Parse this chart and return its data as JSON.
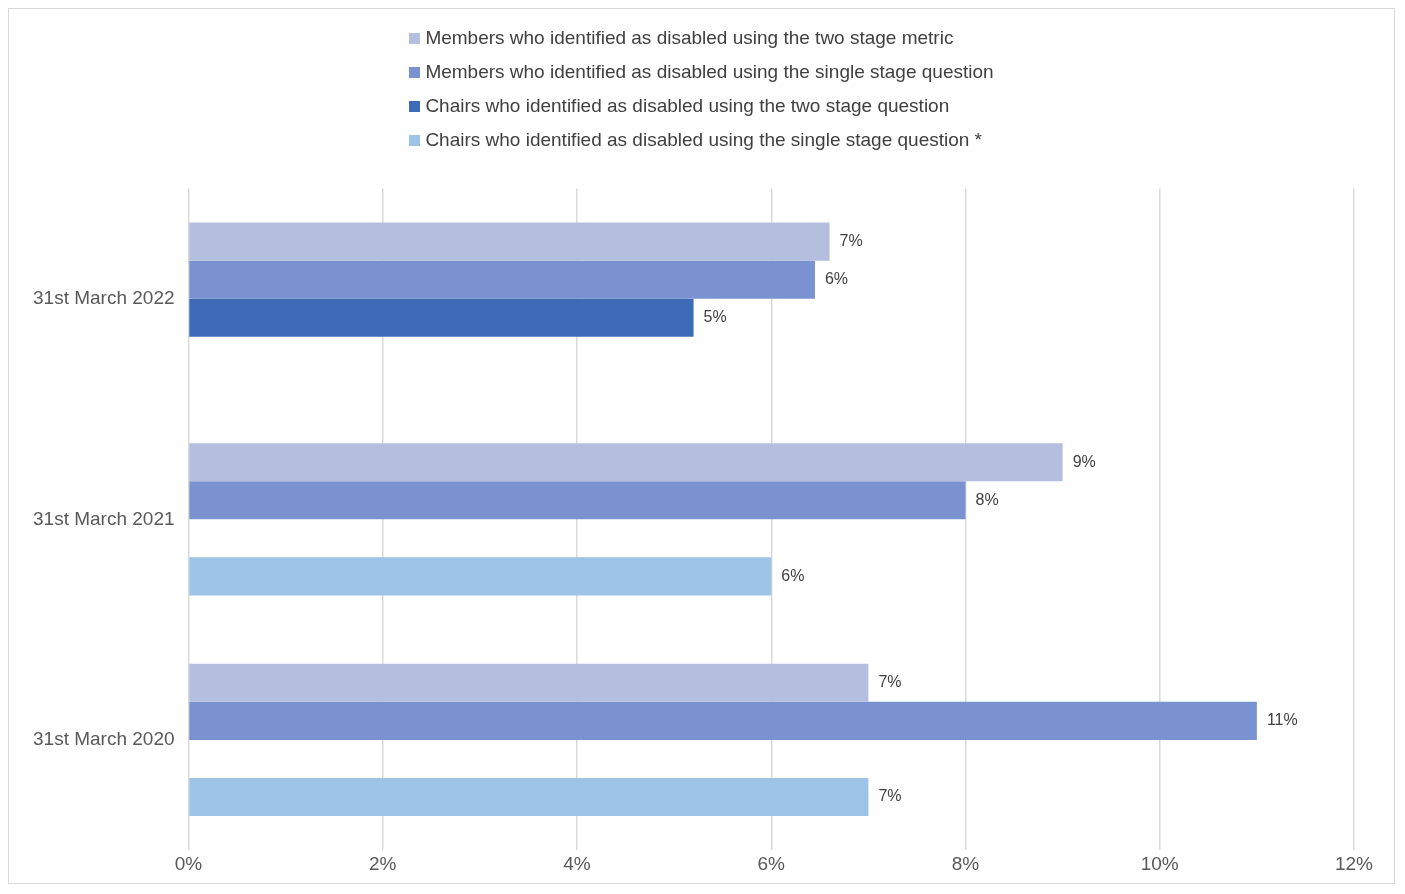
{
  "chart_data": {
    "type": "bar",
    "orientation": "horizontal",
    "categories": [
      "31st March 2022",
      "31st March 2021",
      "31st March 2020"
    ],
    "series": [
      {
        "name": "Members who identified as disabled using the two stage metric",
        "color": "#b4bfe0",
        "values": [
          6.6,
          9.0,
          7.0
        ],
        "value_labels": [
          "7%",
          "9%",
          "7%"
        ]
      },
      {
        "name": "Members who identified as disabled using the single stage question",
        "color": "#7a93d0",
        "values": [
          6.45,
          8.0,
          11.0
        ],
        "value_labels": [
          "6%",
          "8%",
          "11%"
        ]
      },
      {
        "name": "Chairs who identified as disabled using the two stage question",
        "color": "#3d6bb8",
        "values": [
          5.2,
          null,
          null
        ],
        "value_labels": [
          "5%",
          null,
          null
        ]
      },
      {
        "name": "Chairs who identified as disabled using the single stage question *",
        "color": "#9dc3e6",
        "values": [
          null,
          6.0,
          7.0
        ],
        "value_labels": [
          null,
          "6%",
          "7%"
        ]
      }
    ],
    "xlim": [
      0,
      12
    ],
    "xticks": [
      {
        "value": 0,
        "label": "0%"
      },
      {
        "value": 2,
        "label": "2%"
      },
      {
        "value": 4,
        "label": "4%"
      },
      {
        "value": 6,
        "label": "6%"
      },
      {
        "value": 8,
        "label": "8%"
      },
      {
        "value": 10,
        "label": "10%"
      },
      {
        "value": 12,
        "label": "12%"
      }
    ],
    "grid": "x",
    "legend": "top"
  }
}
